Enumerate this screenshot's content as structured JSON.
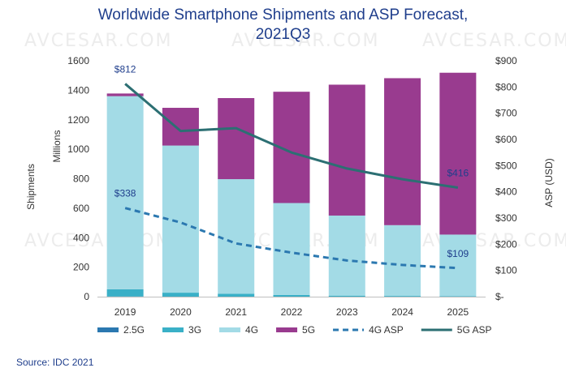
{
  "header": {
    "title_line1": "Worldwide Smartphone Shipments and ASP Forecast,",
    "title_line2": "2021Q3"
  },
  "watermark_text": "AVCESAR.COM",
  "source": "Source: IDC 2021",
  "chart_data": {
    "type": "bar",
    "stacked": true,
    "categories": [
      "2019",
      "2020",
      "2021",
      "2022",
      "2023",
      "2024",
      "2025"
    ],
    "series": [
      {
        "name": "2.5G",
        "type": "bar",
        "color": "#2b78b0",
        "values": [
          1,
          0,
          0,
          0,
          0,
          0,
          0
        ]
      },
      {
        "name": "3G",
        "type": "bar",
        "color": "#3ab0c7",
        "values": [
          49,
          27,
          20,
          12,
          7,
          5,
          3
        ]
      },
      {
        "name": "4G",
        "type": "bar",
        "color": "#a3dbe6",
        "values": [
          1310,
          998,
          777,
          623,
          543,
          480,
          418
        ]
      },
      {
        "name": "5G",
        "type": "bar",
        "color": "#993b8f",
        "values": [
          18,
          256,
          550,
          755,
          888,
          997,
          1098
        ]
      },
      {
        "name": "4G ASP",
        "type": "line",
        "dashed": true,
        "color": "#2b78b0",
        "axis": "right",
        "values": [
          338,
          283,
          203,
          168,
          138,
          121,
          109
        ]
      },
      {
        "name": "5G ASP",
        "type": "line",
        "dashed": false,
        "color": "#2c6f73",
        "axis": "right",
        "values": [
          812,
          632,
          643,
          550,
          489,
          448,
          416
        ]
      }
    ],
    "y_left": {
      "label": "Shipments",
      "sublabel": "Millions",
      "ylim": [
        0,
        1600
      ],
      "ticks": [
        "0",
        "200",
        "400",
        "600",
        "800",
        "1000",
        "1200",
        "1400",
        "1600"
      ]
    },
    "y_right": {
      "label": "ASP (USD)",
      "ylim": [
        0,
        900
      ],
      "ticks": [
        "$-",
        "$100",
        "$200",
        "$300",
        "$400",
        "$500",
        "$600",
        "$700",
        "$800",
        "$900"
      ]
    },
    "annotations": [
      {
        "text": "$812",
        "series": "5G ASP",
        "index": 0
      },
      {
        "text": "$416",
        "series": "5G ASP",
        "index": 6
      },
      {
        "text": "$338",
        "series": "4G ASP",
        "index": 0
      },
      {
        "text": "$109",
        "series": "4G ASP",
        "index": 6
      }
    ],
    "legend": {
      "position": "bottom",
      "items": [
        "2.5G",
        "3G",
        "4G",
        "5G",
        "4G ASP",
        "5G ASP"
      ]
    },
    "grid": false
  }
}
